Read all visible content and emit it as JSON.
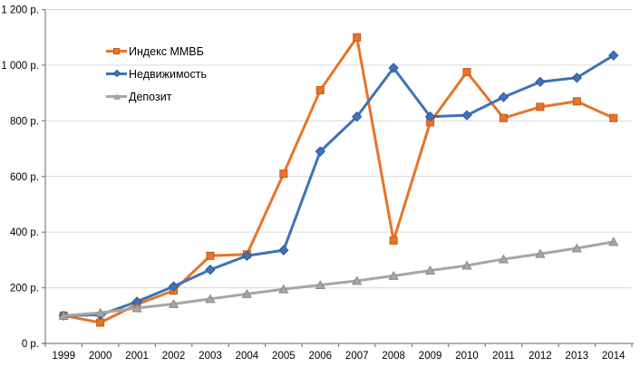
{
  "chart_data": {
    "type": "line",
    "title": "",
    "xlabel": "",
    "ylabel": "",
    "currency_suffix": " р.",
    "categories": [
      "1999",
      "2000",
      "2001",
      "2002",
      "2003",
      "2004",
      "2005",
      "2006",
      "2007",
      "2008",
      "2009",
      "2010",
      "2011",
      "2012",
      "2013",
      "2014"
    ],
    "series": [
      {
        "name": "Индекс ММВБ",
        "marker": "square",
        "color": "#E87427",
        "edge_color": "#C55A11",
        "values": [
          100,
          75,
          140,
          190,
          315,
          320,
          610,
          910,
          1100,
          370,
          795,
          975,
          810,
          850,
          870,
          810
        ]
      },
      {
        "name": "Недвижимость",
        "marker": "diamond",
        "color": "#3F72B8",
        "edge_color": "#2E5B9B",
        "values": [
          100,
          103,
          150,
          205,
          265,
          315,
          335,
          690,
          815,
          990,
          815,
          820,
          885,
          940,
          955,
          1035
        ]
      },
      {
        "name": "Депозит",
        "marker": "triangle",
        "color": "#A6A6A6",
        "edge_color": "#8A8A8A",
        "values": [
          100,
          110,
          127,
          142,
          160,
          178,
          195,
          210,
          225,
          243,
          262,
          280,
          303,
          322,
          342,
          365
        ]
      }
    ],
    "y_axis": {
      "min": 0,
      "max": 1200,
      "step": 200,
      "tick_labels": [
        "0 р.",
        "200 р.",
        "400 р.",
        "600 р.",
        "800 р.",
        "1 000 р.",
        "1 200 р."
      ]
    },
    "legend_position": "inside-top-left",
    "grid": "horizontal",
    "colors": {
      "gridline": "#D9D9D9",
      "axis": "#808080",
      "label": "#000000",
      "background": "#FFFFFF"
    }
  }
}
